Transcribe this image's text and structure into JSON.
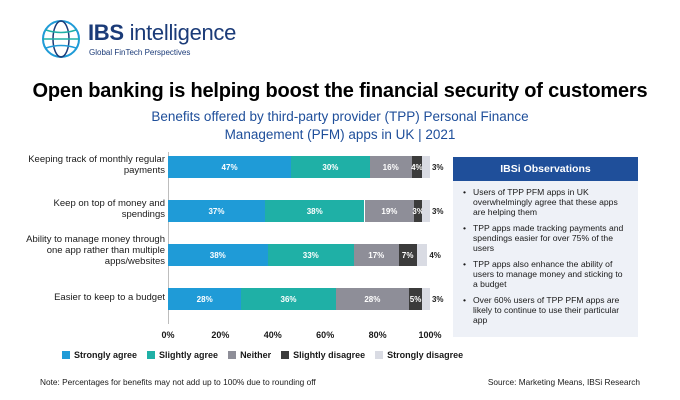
{
  "brand": {
    "name_bold": "IBS",
    "name_light": " intelligence",
    "tagline": "Global FinTech Perspectives"
  },
  "title": "Open banking is helping boost the financial security of customers",
  "subtitle": "Benefits offered by third-party provider (TPP) Personal Finance Management (PFM) apps in UK | 2021",
  "colors": {
    "strongly_agree": "#1f9bd7",
    "slightly_agree": "#1fb0a6",
    "neither": "#8e8e98",
    "slightly_disagree": "#3b3b3b",
    "strongly_disagree": "#d9dbe3",
    "panel_header": "#1f4f9a",
    "panel_bg": "#eef1f7"
  },
  "chart_data": {
    "type": "bar",
    "orientation": "horizontal",
    "stacked": true,
    "categories": [
      "Keeping track of monthly regular payments",
      "Keep on top of money and spendings",
      "Ability to manage money through one app rather than multiple apps/websites",
      "Easier to keep to a budget"
    ],
    "series": [
      {
        "name": "Strongly agree",
        "values": [
          47,
          37,
          38,
          28
        ]
      },
      {
        "name": "Slightly agree",
        "values": [
          30,
          38,
          33,
          36
        ]
      },
      {
        "name": "Neither",
        "values": [
          16,
          19,
          17,
          28
        ]
      },
      {
        "name": "Slightly disagree",
        "values": [
          4,
          3,
          7,
          5
        ]
      },
      {
        "name": "Strongly disagree",
        "values": [
          3,
          3,
          4,
          3
        ]
      }
    ],
    "data_labels": [
      [
        "47%",
        "30%",
        "16%",
        "4%",
        "3%"
      ],
      [
        "37%",
        "38%",
        "19%",
        "3%",
        "3%"
      ],
      [
        "38%",
        "33%",
        "17%",
        "7%",
        "4%"
      ],
      [
        "28%",
        "36%",
        "28%",
        "5%",
        "3%"
      ]
    ],
    "xlim": [
      0,
      100
    ],
    "ticks": [
      "0%",
      "20%",
      "40%",
      "60%",
      "80%",
      "100%"
    ],
    "legend_position": "bottom",
    "grid": false
  },
  "observations": {
    "title": "IBSi Observations",
    "items": [
      "Users of TPP PFM apps in UK overwhelmingly agree that these apps are helping them",
      "TPP apps made tracking payments and spendings easier for over 75% of the users",
      "TPP apps also enhance the ability of users to manage money and sticking to a budget",
      "Over 60% users of TPP PFM apps are likely to continue to use their particular app"
    ]
  },
  "footer": {
    "note": "Note: Percentages for benefits may not add up to 100% due to rounding off",
    "source": "Source: Marketing Means, IBSi Research"
  }
}
